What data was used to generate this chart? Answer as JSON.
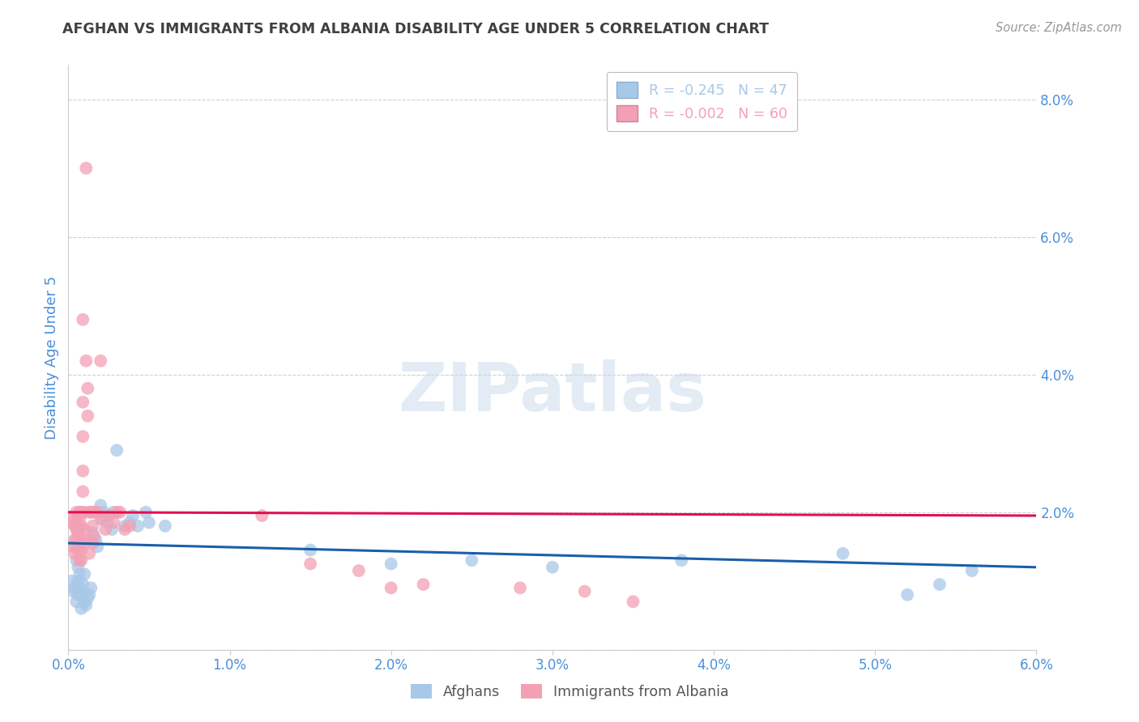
{
  "title": "AFGHAN VS IMMIGRANTS FROM ALBANIA DISABILITY AGE UNDER 5 CORRELATION CHART",
  "source": "Source: ZipAtlas.com",
  "ylabel": "Disability Age Under 5",
  "xlim": [
    0.0,
    0.06
  ],
  "ylim": [
    0.0,
    0.085
  ],
  "xticks": [
    0.0,
    0.01,
    0.02,
    0.03,
    0.04,
    0.05,
    0.06
  ],
  "yticks": [
    0.0,
    0.02,
    0.04,
    0.06,
    0.08
  ],
  "ytick_labels": [
    "",
    "2.0%",
    "4.0%",
    "6.0%",
    "8.0%"
  ],
  "xtick_labels": [
    "0.0%",
    "1.0%",
    "2.0%",
    "3.0%",
    "4.0%",
    "5.0%",
    "6.0%"
  ],
  "legend_entries": [
    {
      "label": "R = -0.245   N = 47",
      "color": "#a8c8e8"
    },
    {
      "label": "R = -0.002   N = 60",
      "color": "#f4a0b4"
    }
  ],
  "afghans_scatter": [
    [
      0.0002,
      0.01
    ],
    [
      0.0003,
      0.0085
    ],
    [
      0.0004,
      0.009
    ],
    [
      0.0005,
      0.007
    ],
    [
      0.0005,
      0.013
    ],
    [
      0.0005,
      0.015
    ],
    [
      0.0006,
      0.008
    ],
    [
      0.0006,
      0.01
    ],
    [
      0.0006,
      0.012
    ],
    [
      0.0007,
      0.009
    ],
    [
      0.0007,
      0.011
    ],
    [
      0.0008,
      0.006
    ],
    [
      0.0008,
      0.008
    ],
    [
      0.0009,
      0.0095
    ],
    [
      0.001,
      0.007
    ],
    [
      0.001,
      0.011
    ],
    [
      0.0011,
      0.0065
    ],
    [
      0.0012,
      0.0075
    ],
    [
      0.0013,
      0.008
    ],
    [
      0.0014,
      0.009
    ],
    [
      0.0015,
      0.017
    ],
    [
      0.0017,
      0.016
    ],
    [
      0.0018,
      0.015
    ],
    [
      0.002,
      0.019
    ],
    [
      0.002,
      0.021
    ],
    [
      0.0022,
      0.02
    ],
    [
      0.0024,
      0.0185
    ],
    [
      0.0025,
      0.0195
    ],
    [
      0.0027,
      0.0175
    ],
    [
      0.0028,
      0.02
    ],
    [
      0.003,
      0.029
    ],
    [
      0.0035,
      0.018
    ],
    [
      0.0038,
      0.0185
    ],
    [
      0.004,
      0.0195
    ],
    [
      0.0043,
      0.018
    ],
    [
      0.0048,
      0.02
    ],
    [
      0.005,
      0.0185
    ],
    [
      0.006,
      0.018
    ],
    [
      0.015,
      0.0145
    ],
    [
      0.02,
      0.0125
    ],
    [
      0.025,
      0.013
    ],
    [
      0.03,
      0.012
    ],
    [
      0.038,
      0.013
    ],
    [
      0.048,
      0.014
    ],
    [
      0.052,
      0.008
    ],
    [
      0.054,
      0.0095
    ],
    [
      0.056,
      0.0115
    ]
  ],
  "albania_scatter": [
    [
      0.0002,
      0.019
    ],
    [
      0.0003,
      0.0185
    ],
    [
      0.0003,
      0.015
    ],
    [
      0.0004,
      0.018
    ],
    [
      0.0004,
      0.016
    ],
    [
      0.0004,
      0.014
    ],
    [
      0.0005,
      0.02
    ],
    [
      0.0005,
      0.0175
    ],
    [
      0.0005,
      0.016
    ],
    [
      0.0006,
      0.0195
    ],
    [
      0.0006,
      0.017
    ],
    [
      0.0006,
      0.0145
    ],
    [
      0.0007,
      0.019
    ],
    [
      0.0007,
      0.02
    ],
    [
      0.0007,
      0.0175
    ],
    [
      0.0007,
      0.0155
    ],
    [
      0.0007,
      0.013
    ],
    [
      0.0008,
      0.02
    ],
    [
      0.0008,
      0.018
    ],
    [
      0.0008,
      0.016
    ],
    [
      0.0008,
      0.0145
    ],
    [
      0.0008,
      0.013
    ],
    [
      0.0009,
      0.031
    ],
    [
      0.0009,
      0.026
    ],
    [
      0.0009,
      0.023
    ],
    [
      0.0009,
      0.036
    ],
    [
      0.0009,
      0.048
    ],
    [
      0.001,
      0.02
    ],
    [
      0.001,
      0.0175
    ],
    [
      0.001,
      0.0155
    ],
    [
      0.0011,
      0.042
    ],
    [
      0.0011,
      0.07
    ],
    [
      0.0012,
      0.038
    ],
    [
      0.0012,
      0.034
    ],
    [
      0.0013,
      0.02
    ],
    [
      0.0013,
      0.016
    ],
    [
      0.0013,
      0.014
    ],
    [
      0.0014,
      0.02
    ],
    [
      0.0015,
      0.018
    ],
    [
      0.0015,
      0.0155
    ],
    [
      0.0016,
      0.02
    ],
    [
      0.0016,
      0.0165
    ],
    [
      0.0018,
      0.02
    ],
    [
      0.002,
      0.042
    ],
    [
      0.0021,
      0.019
    ],
    [
      0.0023,
      0.0175
    ],
    [
      0.0025,
      0.0195
    ],
    [
      0.0028,
      0.0185
    ],
    [
      0.003,
      0.02
    ],
    [
      0.0032,
      0.02
    ],
    [
      0.0035,
      0.0175
    ],
    [
      0.0038,
      0.018
    ],
    [
      0.012,
      0.0195
    ],
    [
      0.015,
      0.0125
    ],
    [
      0.018,
      0.0115
    ],
    [
      0.02,
      0.009
    ],
    [
      0.022,
      0.0095
    ],
    [
      0.028,
      0.009
    ],
    [
      0.032,
      0.0085
    ],
    [
      0.035,
      0.007
    ]
  ],
  "afghan_color": "#a8c8e8",
  "albania_color": "#f4a0b4",
  "afghan_line_color": "#1a5faa",
  "albania_line_color": "#e01050",
  "afghan_trend": [
    0.0,
    0.0155,
    0.06,
    0.012
  ],
  "albania_trend": [
    0.0,
    0.02,
    0.06,
    0.0195
  ],
  "watermark_text": "ZIPatlas",
  "background_color": "#ffffff",
  "grid_color": "#d0d0d0",
  "title_color": "#404040",
  "axis_label_color": "#4a90d9",
  "tick_label_color": "#4a90d9"
}
